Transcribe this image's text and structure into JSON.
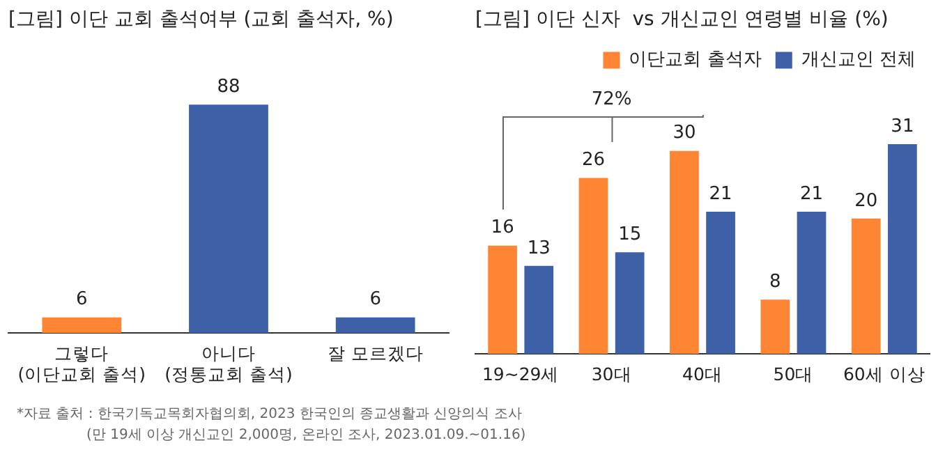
{
  "chart_data": [
    {
      "type": "bar",
      "title": "[그림] 이단 교회 출석여부 (교회 출석자, %)",
      "categories": [
        "그렇다\n(이단교회 출석)",
        "아니다\n(정통교회 출석)",
        "잘 모르겠다"
      ],
      "values": [
        6,
        88,
        6
      ],
      "colors": [
        "#fd8534",
        "#3d60a7",
        "#3d60a7"
      ],
      "data_labels": true,
      "grid": false,
      "legend": false,
      "annotations": [
        "*자료 출처 : 한국기독교목회자협의회, 2023 한국인의 종교생활과 신앙의식 조사",
        "(만 19세 이상 개신교인 2,000명, 온라인 조사, 2023.01.09.~01.16)"
      ]
    },
    {
      "type": "bar",
      "title": "[그림] 이단 신자  vs 개신교인 연령별 비율 (%)",
      "categories": [
        "19~29세",
        "30대",
        "40대",
        "50대",
        "60세 이상"
      ],
      "series": [
        {
          "name": "이단교회 출석자",
          "color": "#fd8534",
          "values": [
            16,
            26,
            30,
            8,
            20
          ]
        },
        {
          "name": "개신교인 전체",
          "color": "#3d60a7",
          "values": [
            13,
            15,
            21,
            21,
            31
          ]
        }
      ],
      "data_labels": true,
      "grid": false,
      "legend": "top right",
      "annotations": [
        "72%"
      ]
    }
  ]
}
